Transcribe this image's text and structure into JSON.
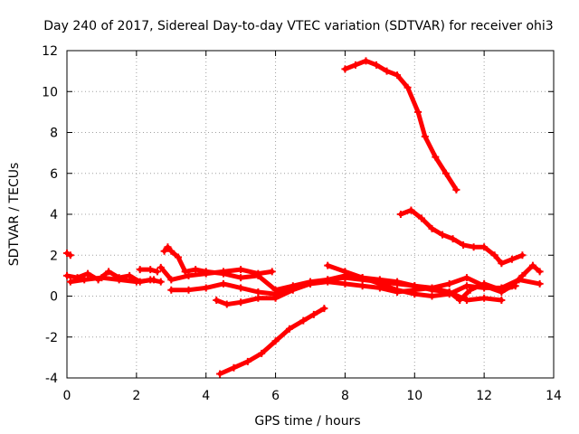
{
  "chart_data": {
    "type": "line",
    "title": "Day 240 of 2017, Sidereal Day-to-day VTEC variation (SDTVAR) for receiver ohi3",
    "xlabel": "GPS time / hours",
    "ylabel": "SDTVAR / TECUs",
    "xlim": [
      0,
      14
    ],
    "ylim": [
      -4,
      12
    ],
    "xticks": [
      "0",
      "2",
      "4",
      "6",
      "8",
      "10",
      "12",
      "14"
    ],
    "yticks": [
      "-4",
      "-2",
      "0",
      "2",
      "4",
      "6",
      "8",
      "10",
      "12"
    ],
    "grid": true,
    "line_color": "#ff0000",
    "series": [
      {
        "name": "s1",
        "x": [
          0.0,
          0.1
        ],
        "y": [
          2.1,
          2.0
        ]
      },
      {
        "name": "s2",
        "x": [
          0.0,
          0.3,
          0.6,
          0.9,
          1.2,
          1.5,
          1.8,
          2.1,
          2.4,
          2.7
        ],
        "y": [
          1.0,
          0.9,
          1.1,
          0.8,
          1.2,
          0.9,
          1.0,
          0.7,
          0.8,
          0.7
        ]
      },
      {
        "name": "s3",
        "x": [
          0.1,
          0.5,
          1.0,
          1.5,
          2.0,
          2.5
        ],
        "y": [
          0.7,
          0.8,
          0.9,
          0.8,
          0.7,
          0.8
        ]
      },
      {
        "name": "s4",
        "x": [
          2.1,
          2.4,
          2.6
        ],
        "y": [
          1.3,
          1.3,
          1.2
        ]
      },
      {
        "name": "s5",
        "x": [
          2.8,
          2.9,
          3.0,
          3.2,
          3.4,
          3.7,
          4.0,
          4.5,
          5.0,
          5.5,
          6.0,
          6.5,
          7.0,
          7.5,
          8.0,
          8.5,
          9.0,
          9.5,
          10.0,
          10.5,
          11.0,
          11.3,
          11.6,
          12.0,
          12.5,
          12.9
        ],
        "y": [
          2.2,
          2.4,
          2.2,
          1.9,
          1.2,
          1.3,
          1.2,
          1.1,
          0.9,
          1.0,
          0.3,
          0.5,
          0.7,
          0.8,
          0.9,
          0.8,
          0.7,
          0.6,
          0.5,
          0.3,
          0.2,
          -0.2,
          0.3,
          0.6,
          0.3,
          0.5
        ]
      },
      {
        "name": "s6",
        "x": [
          2.7,
          3.0,
          3.5,
          4.0,
          4.5,
          5.0,
          5.5,
          5.9
        ],
        "y": [
          1.4,
          0.8,
          1.0,
          1.1,
          1.2,
          1.3,
          1.1,
          1.2
        ]
      },
      {
        "name": "s7",
        "x": [
          3.0,
          3.5,
          4.0,
          4.5,
          5.0,
          5.5,
          6.0,
          6.5,
          7.0,
          7.5,
          8.0,
          8.5,
          9.0,
          9.5,
          10.0,
          10.5,
          11.0,
          11.5,
          12.0,
          12.5
        ],
        "y": [
          0.3,
          0.3,
          0.4,
          0.6,
          0.4,
          0.2,
          0.1,
          0.4,
          0.6,
          0.8,
          1.0,
          0.9,
          0.8,
          0.7,
          0.5,
          0.4,
          0.2,
          -0.2,
          -0.1,
          -0.2
        ]
      },
      {
        "name": "s8",
        "x": [
          4.3,
          4.6,
          5.0,
          5.5,
          6.0,
          6.5,
          7.0,
          7.5,
          8.0,
          8.5,
          9.0,
          9.5,
          10.0,
          10.5,
          11.0,
          11.5,
          12.0,
          12.5,
          12.8,
          13.1,
          13.4,
          13.6
        ],
        "y": [
          -0.2,
          -0.4,
          -0.3,
          -0.1,
          -0.1,
          0.3,
          0.6,
          0.7,
          0.6,
          0.5,
          0.4,
          0.2,
          0.3,
          0.4,
          0.6,
          0.9,
          0.5,
          0.2,
          0.5,
          1.0,
          1.5,
          1.2
        ]
      },
      {
        "name": "s9",
        "x": [
          7.5,
          8.0,
          8.5,
          9.0,
          9.5,
          10.0,
          10.5,
          11.0,
          11.5,
          12.0,
          12.5,
          13.0,
          13.6
        ],
        "y": [
          1.5,
          1.2,
          0.9,
          0.6,
          0.3,
          0.1,
          0.0,
          0.1,
          0.5,
          0.4,
          0.4,
          0.8,
          0.6
        ]
      },
      {
        "name": "s10",
        "x": [
          4.4,
          4.8,
          5.2,
          5.6,
          6.0,
          6.4,
          6.8,
          7.1,
          7.4
        ],
        "y": [
          -3.8,
          -3.5,
          -3.2,
          -2.8,
          -2.2,
          -1.6,
          -1.2,
          -0.9,
          -0.6
        ]
      },
      {
        "name": "s11",
        "x": [
          8.0,
          8.3,
          8.6,
          8.9,
          9.2,
          9.5,
          9.8,
          10.1,
          10.3,
          10.6,
          10.9,
          11.2
        ],
        "y": [
          11.1,
          11.3,
          11.5,
          11.3,
          11.0,
          10.8,
          10.2,
          9.0,
          7.8,
          6.8,
          6.0,
          5.2
        ]
      },
      {
        "name": "s12",
        "x": [
          9.6,
          9.9,
          10.2,
          10.5,
          10.8,
          11.1,
          11.4,
          11.7,
          12.0,
          12.3,
          12.5,
          12.8,
          13.1
        ],
        "y": [
          4.0,
          4.2,
          3.8,
          3.3,
          3.0,
          2.8,
          2.5,
          2.4,
          2.4,
          2.0,
          1.6,
          1.8,
          2.0
        ]
      }
    ]
  }
}
